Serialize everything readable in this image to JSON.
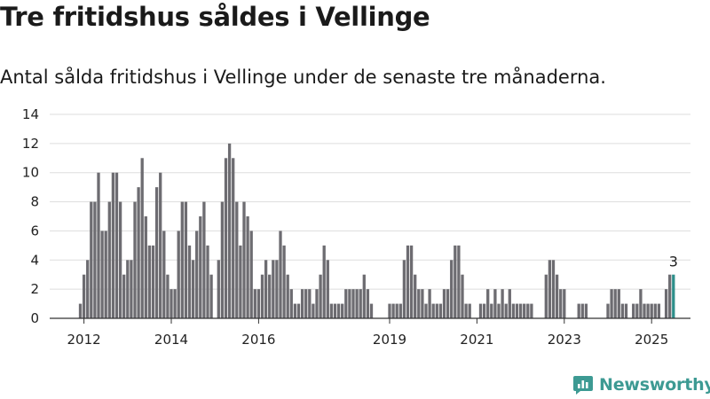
{
  "title": "Tre fritidshus såldes i Vellinge",
  "subtitle": "Antal sålda fritidshus i Vellinge under de senaste tre månaderna.",
  "brand": {
    "name": "Newsworthy",
    "icon": "newsworthy-logo-icon"
  },
  "colors": {
    "bar": "#6d6c71",
    "highlight": "#2e8f8a",
    "grid": "#dddddd",
    "axis": "#333333",
    "text": "#222222"
  },
  "chart_data": {
    "type": "bar",
    "title": "Tre fritidshus såldes i Vellinge",
    "subtitle": "Antal sålda fritidshus i Vellinge under de senaste tre månaderna.",
    "xlabel": "",
    "ylabel": "",
    "ylim": [
      0,
      14
    ],
    "yticks": [
      0,
      2,
      4,
      6,
      8,
      10,
      12,
      14
    ],
    "grid": true,
    "legend": "none",
    "x_start": "2011-11",
    "x_unit": "month",
    "xticks": [
      {
        "label": "2012",
        "index": 1
      },
      {
        "label": "2014",
        "index": 25
      },
      {
        "label": "2016",
        "index": 49
      },
      {
        "label": "2019",
        "index": 85
      },
      {
        "label": "2021",
        "index": 109
      },
      {
        "label": "2023",
        "index": 133
      },
      {
        "label": "2025",
        "index": 157
      }
    ],
    "annotation": {
      "text": "3",
      "index": 163
    },
    "highlight_index": 163,
    "values": [
      1,
      3,
      4,
      8,
      8,
      10,
      6,
      6,
      8,
      10,
      10,
      8,
      3,
      4,
      4,
      8,
      9,
      11,
      7,
      5,
      5,
      9,
      10,
      6,
      3,
      2,
      2,
      6,
      8,
      8,
      5,
      4,
      6,
      7,
      8,
      5,
      3,
      0,
      4,
      8,
      11,
      12,
      11,
      8,
      5,
      8,
      7,
      6,
      2,
      2,
      3,
      4,
      3,
      4,
      4,
      6,
      5,
      3,
      2,
      1,
      1,
      2,
      2,
      2,
      1,
      2,
      3,
      5,
      4,
      1,
      1,
      1,
      1,
      2,
      2,
      2,
      2,
      2,
      3,
      2,
      1,
      0,
      0,
      0,
      0,
      1,
      1,
      1,
      1,
      4,
      5,
      5,
      3,
      2,
      2,
      1,
      2,
      1,
      1,
      1,
      2,
      2,
      4,
      5,
      5,
      3,
      1,
      1,
      0,
      0,
      1,
      1,
      2,
      1,
      2,
      1,
      2,
      1,
      2,
      1,
      1,
      1,
      1,
      1,
      1,
      0,
      0,
      0,
      3,
      4,
      4,
      3,
      2,
      2,
      0,
      0,
      0,
      1,
      1,
      1,
      0,
      0,
      0,
      0,
      0,
      1,
      2,
      2,
      2,
      1,
      1,
      0,
      1,
      1,
      2,
      1,
      1,
      1,
      1,
      1,
      0,
      2,
      3,
      3
    ]
  }
}
